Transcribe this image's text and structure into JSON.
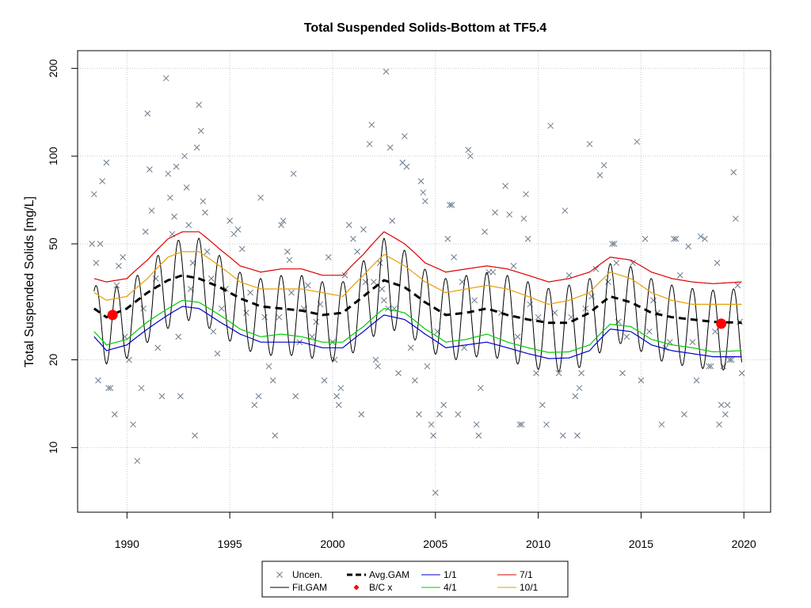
{
  "chart_data": {
    "type": "line",
    "title": "Total Suspended Solids-Bottom at TF5.4",
    "xlabel": "",
    "ylabel": "Total Suspended Solids [mg/L]",
    "y_scale": "log",
    "xlim": [
      1987.6,
      2021.3
    ],
    "ylim": [
      6,
      230
    ],
    "x_ticks": [
      1990,
      1995,
      2000,
      2005,
      2010,
      2015,
      2020
    ],
    "y_ticks": [
      10,
      20,
      50,
      100,
      200
    ],
    "grid": true,
    "legend_position": "bottom",
    "seasonal_model": {
      "center_month": 6.5,
      "half_range": 5.5
    },
    "annual": {
      "x": [
        1988.4,
        1989.0,
        1990.0,
        1991.0,
        1992.0,
        1992.7,
        1993.5,
        1994.5,
        1995.5,
        1996.5,
        1997.5,
        1998.5,
        1999.5,
        2000.5,
        2001.5,
        2002.5,
        2003.5,
        2004.5,
        2005.5,
        2006.5,
        2007.5,
        2008.5,
        2009.5,
        2010.5,
        2011.5,
        2012.5,
        2013.5,
        2014.5,
        2015.5,
        2016.5,
        2017.5,
        2018.5,
        2019.9
      ],
      "avg_gam": [
        30,
        28,
        30,
        34,
        37.5,
        39,
        38,
        35.5,
        32.5,
        30.5,
        30,
        29.5,
        28.5,
        29,
        33,
        37.5,
        35.5,
        31.5,
        28.5,
        29,
        30,
        28.5,
        27.5,
        26.8,
        26.8,
        29,
        33,
        31.5,
        29,
        28,
        27.5,
        27,
        26.8
      ],
      "jan": [
        24,
        21.5,
        22.5,
        25.5,
        28.5,
        30.5,
        30,
        27,
        24.5,
        23,
        23,
        23,
        22,
        22,
        25,
        28.5,
        27.5,
        24.5,
        22,
        22.5,
        23,
        22,
        21,
        20.2,
        20.3,
        21.5,
        25.5,
        25,
        22.5,
        21.5,
        21,
        20.5,
        20.5
      ],
      "apr": [
        25,
        22.5,
        23.5,
        27,
        30,
        32,
        31.5,
        28.5,
        25.5,
        24,
        24.5,
        24,
        23,
        23,
        26,
        30,
        29,
        25.5,
        23,
        23.5,
        24.5,
        23,
        22,
        21.2,
        21.3,
        22.5,
        26.5,
        26,
        23.5,
        22.5,
        22,
        21.3,
        21.5
      ],
      "jul": [
        38,
        37,
        38,
        44,
        52,
        55,
        55,
        48,
        42,
        40,
        41,
        41,
        39,
        39,
        46,
        55,
        50,
        43,
        40,
        41,
        42,
        41,
        39,
        37,
        38,
        40,
        45,
        44,
        40,
        38,
        37,
        36.5,
        37
      ],
      "oct": [
        34,
        32,
        33,
        38,
        45,
        47,
        47,
        42,
        37,
        35,
        35,
        35,
        34,
        33,
        39,
        46,
        42,
        37,
        34,
        35,
        36,
        35,
        33,
        31,
        32,
        34,
        40,
        38,
        34,
        32,
        31,
        31,
        31
      ]
    },
    "bc_points": [
      {
        "x": 1989.3,
        "y": 28.5
      },
      {
        "x": 2018.9,
        "y": 26.6
      }
    ],
    "uncensored_points": [
      [
        1988.3,
        50
      ],
      [
        1988.4,
        74
      ],
      [
        1988.5,
        43
      ],
      [
        1988.6,
        17
      ],
      [
        1988.7,
        50
      ],
      [
        1988.8,
        82
      ],
      [
        1989.0,
        95
      ],
      [
        1989.1,
        16
      ],
      [
        1989.2,
        16
      ],
      [
        1989.4,
        13
      ],
      [
        1989.5,
        36
      ],
      [
        1989.6,
        42
      ],
      [
        1989.8,
        45
      ],
      [
        1989.9,
        24
      ],
      [
        1990.1,
        20
      ],
      [
        1990.3,
        12
      ],
      [
        1990.5,
        9
      ],
      [
        1990.7,
        16
      ],
      [
        1990.8,
        30
      ],
      [
        1990.9,
        55
      ],
      [
        1991.0,
        140
      ],
      [
        1991.1,
        90
      ],
      [
        1991.2,
        65
      ],
      [
        1991.4,
        38
      ],
      [
        1991.5,
        22
      ],
      [
        1991.7,
        15
      ],
      [
        1991.9,
        185
      ],
      [
        1992.0,
        87
      ],
      [
        1992.1,
        72
      ],
      [
        1992.2,
        54
      ],
      [
        1992.3,
        62
      ],
      [
        1992.4,
        92
      ],
      [
        1992.5,
        24
      ],
      [
        1992.6,
        15
      ],
      [
        1992.8,
        100
      ],
      [
        1992.9,
        78
      ],
      [
        1993.0,
        58
      ],
      [
        1993.1,
        35
      ],
      [
        1993.2,
        43
      ],
      [
        1993.3,
        11
      ],
      [
        1993.4,
        107
      ],
      [
        1993.5,
        150
      ],
      [
        1993.6,
        122
      ],
      [
        1993.7,
        70
      ],
      [
        1993.8,
        64
      ],
      [
        1993.9,
        47
      ],
      [
        1994.1,
        38
      ],
      [
        1994.2,
        25
      ],
      [
        1994.4,
        21
      ],
      [
        1994.6,
        30
      ],
      [
        1994.8,
        35
      ],
      [
        1995.0,
        60
      ],
      [
        1995.2,
        54
      ],
      [
        1995.4,
        56
      ],
      [
        1995.6,
        48
      ],
      [
        1995.8,
        29
      ],
      [
        1996.0,
        34
      ],
      [
        1996.2,
        14
      ],
      [
        1996.4,
        15
      ],
      [
        1996.5,
        72
      ],
      [
        1996.7,
        28
      ],
      [
        1996.9,
        19
      ],
      [
        1997.1,
        17
      ],
      [
        1997.2,
        11
      ],
      [
        1997.4,
        28
      ],
      [
        1997.5,
        58
      ],
      [
        1997.6,
        60
      ],
      [
        1997.8,
        47
      ],
      [
        1997.9,
        44
      ],
      [
        1998.0,
        34
      ],
      [
        1998.1,
        87
      ],
      [
        1998.2,
        15
      ],
      [
        1998.4,
        23
      ],
      [
        1998.6,
        30
      ],
      [
        1998.8,
        36
      ],
      [
        1999.0,
        24
      ],
      [
        1999.2,
        27
      ],
      [
        1999.4,
        31
      ],
      [
        1999.6,
        17
      ],
      [
        1999.8,
        45
      ],
      [
        2000.0,
        23
      ],
      [
        2000.1,
        20
      ],
      [
        2000.2,
        15
      ],
      [
        2000.3,
        14
      ],
      [
        2000.4,
        16
      ],
      [
        2000.6,
        39
      ],
      [
        2000.8,
        58
      ],
      [
        2001.0,
        52
      ],
      [
        2001.2,
        47
      ],
      [
        2001.4,
        13
      ],
      [
        2001.5,
        56
      ],
      [
        2001.6,
        37
      ],
      [
        2001.8,
        110
      ],
      [
        2001.9,
        128
      ],
      [
        2002.0,
        37
      ],
      [
        2002.1,
        20
      ],
      [
        2002.2,
        19
      ],
      [
        2002.3,
        43
      ],
      [
        2002.4,
        35
      ],
      [
        2002.5,
        32
      ],
      [
        2002.6,
        195
      ],
      [
        2002.7,
        30
      ],
      [
        2002.8,
        107
      ],
      [
        2002.9,
        60
      ],
      [
        2003.0,
        30
      ],
      [
        2003.2,
        18
      ],
      [
        2003.4,
        95
      ],
      [
        2003.5,
        117
      ],
      [
        2003.6,
        92
      ],
      [
        2003.8,
        22
      ],
      [
        2004.0,
        17
      ],
      [
        2004.2,
        13
      ],
      [
        2004.3,
        82
      ],
      [
        2004.4,
        75
      ],
      [
        2004.5,
        70
      ],
      [
        2004.6,
        19
      ],
      [
        2004.8,
        12
      ],
      [
        2004.9,
        11
      ],
      [
        2005.0,
        7
      ],
      [
        2005.1,
        25
      ],
      [
        2005.2,
        13
      ],
      [
        2005.4,
        14
      ],
      [
        2005.6,
        52
      ],
      [
        2005.7,
        68
      ],
      [
        2005.8,
        68
      ],
      [
        2005.9,
        45
      ],
      [
        2006.1,
        13
      ],
      [
        2006.3,
        37
      ],
      [
        2006.4,
        22
      ],
      [
        2006.6,
        105
      ],
      [
        2006.7,
        100
      ],
      [
        2006.9,
        32
      ],
      [
        2007.0,
        12
      ],
      [
        2007.1,
        11
      ],
      [
        2007.2,
        16
      ],
      [
        2007.4,
        55
      ],
      [
        2007.6,
        40
      ],
      [
        2007.8,
        40
      ],
      [
        2007.9,
        64
      ],
      [
        2008.2,
        29
      ],
      [
        2008.4,
        79
      ],
      [
        2008.6,
        63
      ],
      [
        2008.8,
        42
      ],
      [
        2009.0,
        24
      ],
      [
        2009.1,
        12
      ],
      [
        2009.2,
        12
      ],
      [
        2009.3,
        61
      ],
      [
        2009.4,
        74
      ],
      [
        2009.5,
        52
      ],
      [
        2009.6,
        31
      ],
      [
        2009.9,
        18
      ],
      [
        2010.0,
        28
      ],
      [
        2010.2,
        14
      ],
      [
        2010.4,
        12
      ],
      [
        2010.6,
        127
      ],
      [
        2010.8,
        29
      ],
      [
        2011.0,
        18
      ],
      [
        2011.2,
        11
      ],
      [
        2011.3,
        65
      ],
      [
        2011.5,
        39
      ],
      [
        2011.6,
        28
      ],
      [
        2011.8,
        15
      ],
      [
        2011.9,
        11
      ],
      [
        2012.0,
        16
      ],
      [
        2012.1,
        18
      ],
      [
        2012.3,
        30
      ],
      [
        2012.5,
        110
      ],
      [
        2012.6,
        33
      ],
      [
        2012.8,
        41
      ],
      [
        2013.0,
        86
      ],
      [
        2013.2,
        93
      ],
      [
        2013.4,
        37
      ],
      [
        2013.6,
        50
      ],
      [
        2013.7,
        50
      ],
      [
        2013.8,
        43
      ],
      [
        2013.9,
        27
      ],
      [
        2014.1,
        18
      ],
      [
        2014.3,
        24
      ],
      [
        2014.6,
        43
      ],
      [
        2014.8,
        112
      ],
      [
        2015.0,
        17
      ],
      [
        2015.2,
        52
      ],
      [
        2015.4,
        25
      ],
      [
        2015.6,
        32
      ],
      [
        2015.8,
        29
      ],
      [
        2016.0,
        12
      ],
      [
        2016.2,
        22
      ],
      [
        2016.4,
        23
      ],
      [
        2016.6,
        52
      ],
      [
        2016.7,
        52
      ],
      [
        2016.9,
        39
      ],
      [
        2017.1,
        13
      ],
      [
        2017.3,
        49
      ],
      [
        2017.5,
        23
      ],
      [
        2017.7,
        17
      ],
      [
        2017.9,
        53
      ],
      [
        2018.1,
        52
      ],
      [
        2018.3,
        19
      ],
      [
        2018.4,
        19
      ],
      [
        2018.6,
        25
      ],
      [
        2018.7,
        43
      ],
      [
        2018.8,
        12
      ],
      [
        2018.9,
        14
      ],
      [
        2019.0,
        19
      ],
      [
        2019.1,
        13
      ],
      [
        2019.2,
        14
      ],
      [
        2019.3,
        20
      ],
      [
        2019.4,
        20
      ],
      [
        2019.5,
        88
      ],
      [
        2019.6,
        61
      ],
      [
        2019.7,
        36
      ],
      [
        2019.8,
        27
      ],
      [
        2019.9,
        18
      ]
    ],
    "legend": {
      "items": [
        {
          "label": "Uncen.",
          "symbol": "cross",
          "color": "#6b7b8c"
        },
        {
          "label": "Avg.GAM",
          "symbol": "dashed-line",
          "color": "#000000"
        },
        {
          "label": "1/1",
          "symbol": "line",
          "color": "#0000cc"
        },
        {
          "label": "7/1",
          "symbol": "line",
          "color": "#dd0000"
        },
        {
          "label": "Fit.GAM",
          "symbol": "line",
          "color": "#000000"
        },
        {
          "label": "B/C x",
          "symbol": "diamond",
          "color": "#ff0000"
        },
        {
          "label": "4/1",
          "symbol": "line",
          "color": "#00cc00"
        },
        {
          "label": "10/1",
          "symbol": "line",
          "color": "#e69f00"
        }
      ]
    }
  }
}
